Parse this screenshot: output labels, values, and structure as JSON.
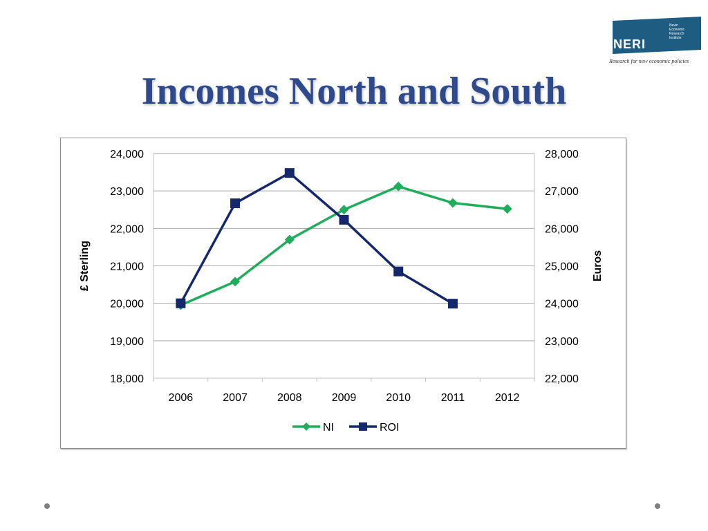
{
  "page": {
    "title": "Incomes North and South",
    "logo_text": "NERI",
    "logo_subtext": [
      "Nevin",
      "Economic",
      "Research",
      "Institute"
    ],
    "logo_tagline": "Research for new economic policies",
    "colors": {
      "title": "#2e4a8c",
      "logo_bg": "#1f5c82",
      "ni": "#1fad5b",
      "roi": "#14286b"
    }
  },
  "chart_data": {
    "type": "line",
    "categories": [
      "2006",
      "2007",
      "2008",
      "2009",
      "2010",
      "2011",
      "2012"
    ],
    "series": [
      {
        "name": "NI",
        "axis": "left",
        "color": "#1fad5b",
        "marker": "diamond",
        "values": [
          19950,
          20580,
          21700,
          22500,
          23120,
          22680,
          22520
        ]
      },
      {
        "name": "ROI",
        "axis": "right",
        "color": "#14286b",
        "marker": "square",
        "values": [
          24000,
          26670,
          27480,
          26230,
          24850,
          23990,
          null
        ]
      }
    ],
    "ylabel_left": "£ Sterling",
    "ylabel_right": "Euros",
    "ylim_left": [
      18000,
      24000
    ],
    "ylim_right": [
      22000,
      28000
    ],
    "yticks_left": [
      "18,000",
      "19,000",
      "20,000",
      "21,000",
      "22,000",
      "23,000",
      "24,000"
    ],
    "yticks_right": [
      "22,000",
      "23,000",
      "24,000",
      "25,000",
      "26,000",
      "27,000",
      "28,000"
    ],
    "grid": true,
    "legend_position": "bottom"
  }
}
